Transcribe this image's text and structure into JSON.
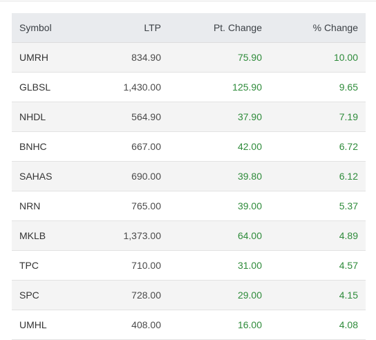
{
  "table": {
    "header": [
      "Symbol",
      "LTP",
      "Pt. Change",
      "% Change"
    ],
    "rows": [
      [
        "UMRH",
        "834.90",
        "75.90",
        "10.00"
      ],
      [
        "GLBSL",
        "1,430.00",
        "125.90",
        "9.65"
      ],
      [
        "NHDL",
        "564.90",
        "37.90",
        "7.19"
      ],
      [
        "BNHC",
        "667.00",
        "42.00",
        "6.72"
      ],
      [
        "SAHAS",
        "690.00",
        "39.80",
        "6.12"
      ],
      [
        "NRN",
        "765.00",
        "39.00",
        "5.37"
      ],
      [
        "MKLB",
        "1,373.00",
        "64.00",
        "4.89"
      ],
      [
        "TPC",
        "710.00",
        "31.00",
        "4.57"
      ],
      [
        "SPC",
        "728.00",
        "29.00",
        "4.15"
      ],
      [
        "UMHL",
        "408.00",
        "16.00",
        "4.08"
      ]
    ]
  }
}
